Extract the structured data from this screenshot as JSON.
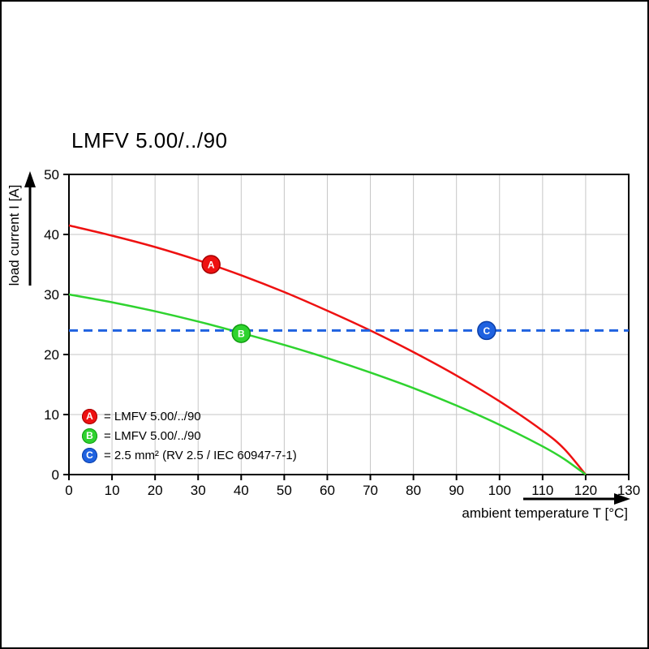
{
  "chart_data": {
    "type": "line",
    "title": "LMFV 5.00/../90",
    "xlabel": "ambient temperature T [°C]",
    "ylabel": "load current I [A]",
    "xlim": [
      0,
      130
    ],
    "ylim": [
      0,
      50
    ],
    "x_ticks": [
      0,
      10,
      20,
      30,
      40,
      50,
      60,
      70,
      80,
      90,
      100,
      110,
      120,
      130
    ],
    "y_ticks": [
      0,
      10,
      20,
      30,
      40,
      50
    ],
    "grid": true,
    "grid_color": "#c6c6c6",
    "legend_position": "lower-left-inside",
    "series": [
      {
        "name": "A",
        "legend": "= LMFV 5.00/../90",
        "color": "#ee1111",
        "edge": "#a30000",
        "style": "solid",
        "x": [
          0,
          10,
          20,
          30,
          40,
          50,
          60,
          70,
          80,
          90,
          100,
          110,
          115,
          120
        ],
        "y": [
          41.5,
          39.8,
          37.9,
          35.7,
          33.2,
          30.4,
          27.3,
          24.0,
          20.4,
          16.5,
          12.2,
          7.3,
          4.3,
          0
        ],
        "marker": {
          "x": 33,
          "y": 35
        }
      },
      {
        "name": "B",
        "legend": "= LMFV 5.00/../90",
        "color": "#2fd32f",
        "edge": "#0e9c0e",
        "style": "solid",
        "x": [
          0,
          10,
          20,
          30,
          40,
          50,
          60,
          70,
          80,
          90,
          100,
          110,
          115,
          120
        ],
        "y": [
          30,
          28.7,
          27.2,
          25.5,
          23.6,
          21.6,
          19.4,
          17.0,
          14.4,
          11.5,
          8.3,
          4.7,
          2.6,
          0
        ],
        "marker": {
          "x": 40,
          "y": 23.5
        }
      },
      {
        "name": "C",
        "legend": "= 2.5 mm² (RV 2.5 / IEC 60947-7-1)",
        "color": "#1f62e0",
        "edge": "#0b3fa8",
        "style": "dashed",
        "hline": true,
        "value": 24,
        "marker": {
          "x": 97,
          "y": 24
        }
      }
    ]
  }
}
